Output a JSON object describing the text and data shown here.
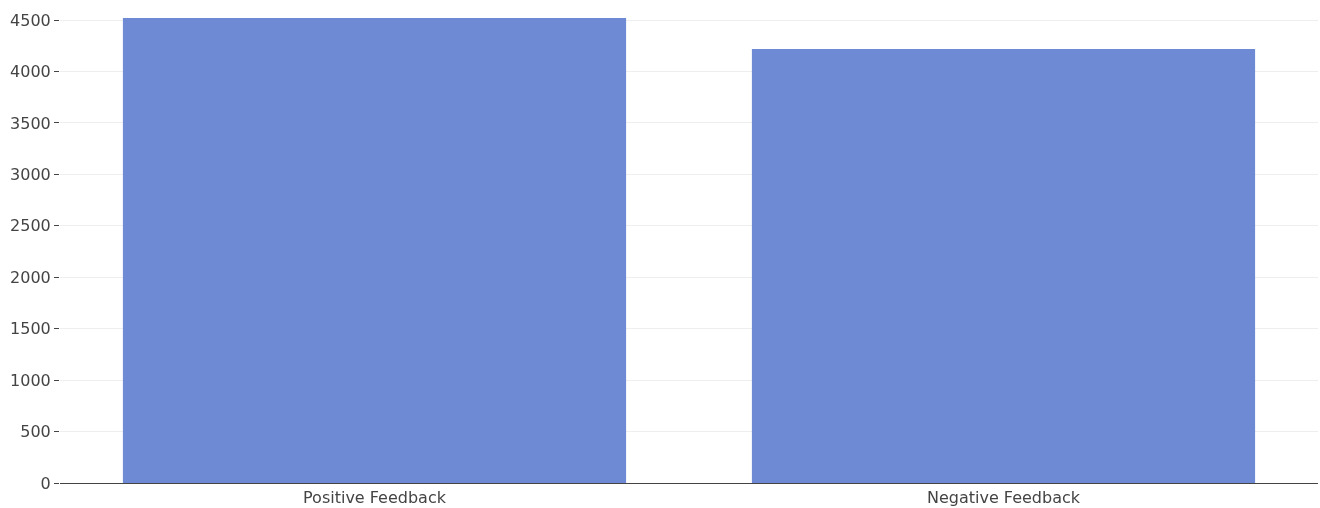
{
  "chart_data": {
    "type": "bar",
    "categories": [
      "Positive Feedback",
      "Negative Feedback"
    ],
    "values": [
      4520,
      4220
    ],
    "color": "#6f8ad5",
    "ylim": [
      0,
      4540
    ],
    "yticks": [
      0,
      500,
      1000,
      1500,
      2000,
      2500,
      3000,
      3500,
      4000,
      4500
    ],
    "grid": "y"
  }
}
